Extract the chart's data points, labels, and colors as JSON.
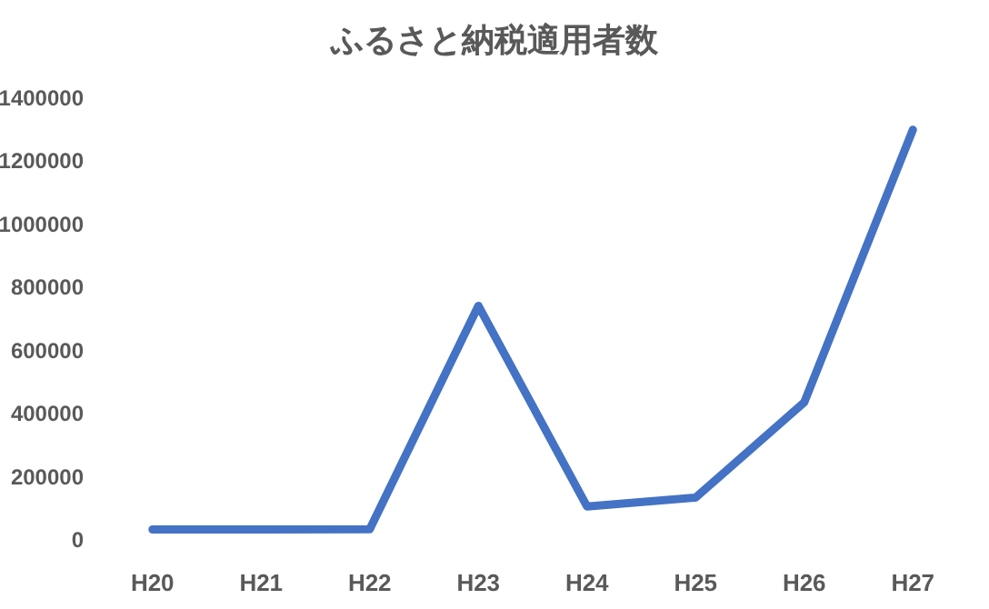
{
  "chart_data": {
    "type": "line",
    "title": "ふるさと納税適用者数",
    "categories": [
      "H20",
      "H21",
      "H22",
      "H23",
      "H24",
      "H25",
      "H26",
      "H27"
    ],
    "series": [
      {
        "color": "#4472c4",
        "values": [
          33000,
          33000,
          34000,
          742000,
          106000,
          134000,
          436000,
          1300000
        ]
      }
    ],
    "ylim": [
      0,
      1400000
    ],
    "yticks": [
      0,
      200000,
      400000,
      600000,
      800000,
      1000000,
      1200000,
      1400000
    ]
  }
}
